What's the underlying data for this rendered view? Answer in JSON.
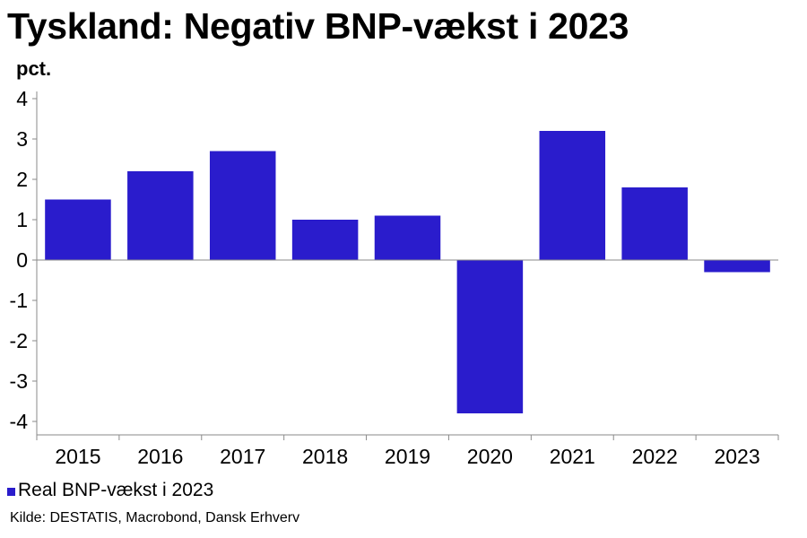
{
  "title": "Tyskland: Negativ BNP-vækst i 2023",
  "unit_label": "pct.",
  "legend_label": "Real BNP-vækst i 2023",
  "source": "Kilde: DESTATIS, Macrobond, Dansk Erhverv",
  "colors": {
    "bar": "#2a1ccc",
    "axis": "#8a8a8a"
  },
  "chart_data": {
    "type": "bar",
    "title": "Tyskland: Negativ BNP-vækst i 2023",
    "ylabel": "pct.",
    "xlabel": "",
    "ylim": [
      -4,
      4
    ],
    "yticks": [
      4,
      3,
      2,
      1,
      0,
      -1,
      -2,
      -3,
      -4
    ],
    "grid": false,
    "legend_position": "bottom-left",
    "categories": [
      "2015",
      "2016",
      "2017",
      "2018",
      "2019",
      "2020",
      "2021",
      "2022",
      "2023"
    ],
    "series": [
      {
        "name": "Real BNP-vækst i 2023",
        "values": [
          1.5,
          2.2,
          2.7,
          1.0,
          1.1,
          -3.8,
          3.2,
          1.8,
          -0.3
        ]
      }
    ]
  }
}
